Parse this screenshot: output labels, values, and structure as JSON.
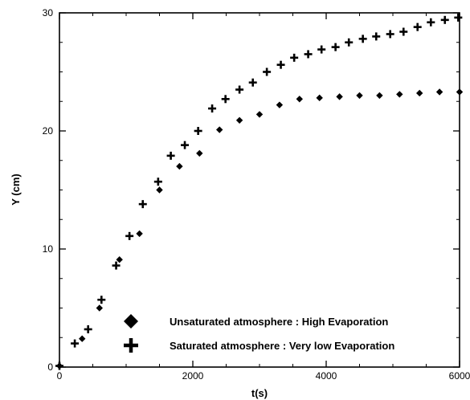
{
  "chart_data": {
    "type": "scatter",
    "xlabel": "t(s)",
    "ylabel": "Y (cm)",
    "xlim": [
      0,
      6000
    ],
    "ylim": [
      0,
      30
    ],
    "xticks": [
      0,
      2000,
      4000,
      6000
    ],
    "yticks": [
      0,
      10,
      20,
      30
    ],
    "x_minor_step": 500,
    "y_minor_step": 2.5,
    "grid": false,
    "legend_position": "bottom-right",
    "series": [
      {
        "name": "Unsaturated atmosphere : High Evaporation",
        "marker": "diamond",
        "color": "#000000",
        "points": [
          {
            "x": 0,
            "y": 0.1
          },
          {
            "x": 340,
            "y": 2.4
          },
          {
            "x": 600,
            "y": 5.0
          },
          {
            "x": 900,
            "y": 9.1
          },
          {
            "x": 1200,
            "y": 11.3
          },
          {
            "x": 1500,
            "y": 15.0
          },
          {
            "x": 1800,
            "y": 17.0
          },
          {
            "x": 2100,
            "y": 18.1
          },
          {
            "x": 2400,
            "y": 20.1
          },
          {
            "x": 2700,
            "y": 20.9
          },
          {
            "x": 3000,
            "y": 21.4
          },
          {
            "x": 3300,
            "y": 22.2
          },
          {
            "x": 3600,
            "y": 22.7
          },
          {
            "x": 3900,
            "y": 22.8
          },
          {
            "x": 4200,
            "y": 22.9
          },
          {
            "x": 4500,
            "y": 23.0
          },
          {
            "x": 4800,
            "y": 23.0
          },
          {
            "x": 5100,
            "y": 23.1
          },
          {
            "x": 5400,
            "y": 23.2
          },
          {
            "x": 5700,
            "y": 23.3
          },
          {
            "x": 6000,
            "y": 23.3
          }
        ]
      },
      {
        "name": "Saturated atmosphere : Very low Evaporation",
        "marker": "plus",
        "color": "#000000",
        "points": [
          {
            "x": 0,
            "y": 0.1
          },
          {
            "x": 230,
            "y": 2.0
          },
          {
            "x": 430,
            "y": 3.2
          },
          {
            "x": 630,
            "y": 5.7
          },
          {
            "x": 850,
            "y": 8.6
          },
          {
            "x": 1050,
            "y": 11.1
          },
          {
            "x": 1250,
            "y": 13.8
          },
          {
            "x": 1480,
            "y": 15.7
          },
          {
            "x": 1670,
            "y": 17.9
          },
          {
            "x": 1880,
            "y": 18.8
          },
          {
            "x": 2080,
            "y": 20.0
          },
          {
            "x": 2290,
            "y": 21.9
          },
          {
            "x": 2490,
            "y": 22.7
          },
          {
            "x": 2700,
            "y": 23.5
          },
          {
            "x": 2900,
            "y": 24.1
          },
          {
            "x": 3110,
            "y": 25.0
          },
          {
            "x": 3320,
            "y": 25.6
          },
          {
            "x": 3520,
            "y": 26.2
          },
          {
            "x": 3730,
            "y": 26.5
          },
          {
            "x": 3930,
            "y": 26.9
          },
          {
            "x": 4140,
            "y": 27.1
          },
          {
            "x": 4340,
            "y": 27.5
          },
          {
            "x": 4550,
            "y": 27.8
          },
          {
            "x": 4750,
            "y": 28.0
          },
          {
            "x": 4960,
            "y": 28.2
          },
          {
            "x": 5160,
            "y": 28.4
          },
          {
            "x": 5370,
            "y": 28.8
          },
          {
            "x": 5570,
            "y": 29.2
          },
          {
            "x": 5780,
            "y": 29.4
          },
          {
            "x": 5980,
            "y": 29.6
          }
        ]
      }
    ]
  }
}
